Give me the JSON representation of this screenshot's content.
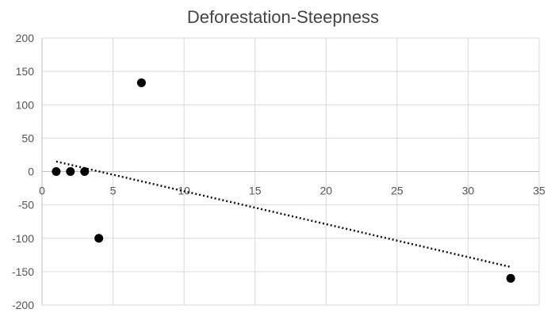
{
  "chart_data": {
    "type": "scatter",
    "title": "Deforestation-Steepness",
    "xlabel": "",
    "ylabel": "",
    "xlim": [
      0,
      35
    ],
    "ylim": [
      -200,
      200
    ],
    "x_ticks": [
      0,
      5,
      10,
      15,
      20,
      25,
      30,
      35
    ],
    "y_ticks": [
      200,
      150,
      100,
      50,
      0,
      -50,
      -100,
      -150,
      -200
    ],
    "grid": true,
    "legend": false,
    "points": [
      {
        "x": 1,
        "y": 0
      },
      {
        "x": 2,
        "y": 0
      },
      {
        "x": 3,
        "y": 0
      },
      {
        "x": 4,
        "y": -100
      },
      {
        "x": 7,
        "y": 133
      },
      {
        "x": 33,
        "y": -160
      }
    ],
    "trendline": {
      "type": "linear",
      "x": [
        1,
        33
      ],
      "y": [
        15,
        -143
      ],
      "style": "dotted"
    },
    "marker_color": "#000000"
  }
}
